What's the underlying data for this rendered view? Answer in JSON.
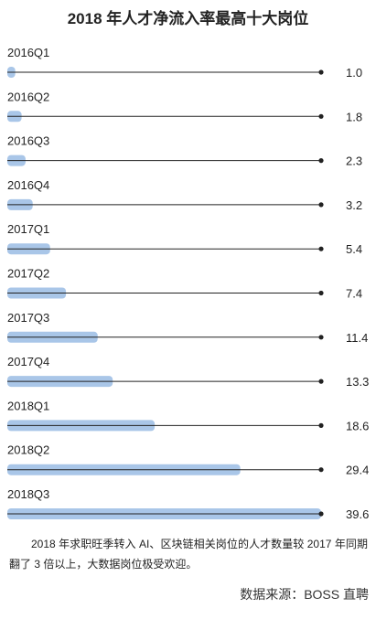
{
  "title": "2018 年人才净流入率最高十大岗位",
  "chart_data": {
    "type": "bar",
    "orientation": "horizontal",
    "categories": [
      "2016Q1",
      "2016Q2",
      "2016Q3",
      "2016Q4",
      "2017Q1",
      "2017Q2",
      "2017Q3",
      "2017Q4",
      "2018Q1",
      "2018Q2",
      "2018Q3"
    ],
    "values": [
      1.0,
      1.8,
      2.3,
      3.2,
      5.4,
      7.4,
      11.4,
      13.3,
      18.6,
      29.4,
      39.6
    ],
    "value_labels": [
      "1.0",
      "1.8",
      "2.3",
      "3.2",
      "5.4",
      "7.4",
      "11.4",
      "13.3",
      "18.6",
      "29.4",
      "39.6"
    ],
    "xlim": [
      0,
      39.6
    ],
    "bar_color": "#a9c6e8",
    "line_color": "#222222"
  },
  "note": "2018 年求职旺季转入 AI、区块链相关岗位的人才数量较 2017 年同期翻了 3 倍以上，大数据岗位极受欢迎。",
  "source": "数据来源：BOSS 直聘"
}
